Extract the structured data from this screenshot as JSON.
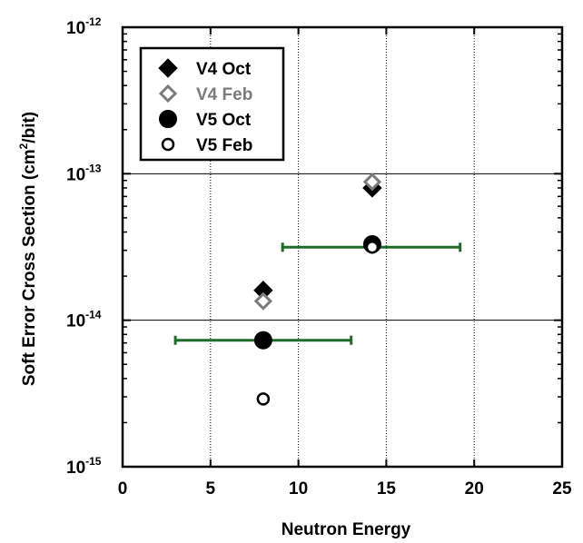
{
  "chart_data": {
    "type": "scatter",
    "xlabel": "Neutron Energy",
    "ylabel": "Soft Error Cross Section (cm²/bit)",
    "ylabel_parts": {
      "prefix": "Soft Error Cross Section (cm",
      "sup": "2",
      "suffix": "/bit)"
    },
    "xlim": [
      0,
      25
    ],
    "ylim": [
      1e-15,
      1e-12
    ],
    "yscale": "log",
    "x_ticks": [
      "0",
      "5",
      "10",
      "15",
      "20",
      "25"
    ],
    "x_tick_values": [
      0,
      5,
      10,
      15,
      20,
      25
    ],
    "y_ticks": [
      {
        "value": 1e-15,
        "base": "10",
        "exp": "-15"
      },
      {
        "value": 1e-14,
        "base": "10",
        "exp": "-14"
      },
      {
        "value": 1e-13,
        "base": "10",
        "exp": "-13"
      },
      {
        "value": 1e-12,
        "base": "10",
        "exp": "-12"
      }
    ],
    "vertical_gridlines_x": [
      5,
      10,
      15,
      20
    ],
    "horizontal_gridlines_y": [
      1e-14,
      1e-13
    ],
    "legend_position": "top-left",
    "series": [
      {
        "name": "V4 Oct",
        "marker": "diamond-filled",
        "color": "#000000",
        "points": [
          [
            8,
            1.6e-14
          ],
          [
            14.2,
            8e-14
          ]
        ]
      },
      {
        "name": "V4 Feb",
        "marker": "diamond-open",
        "color": "#7a7a7a",
        "points": [
          [
            8,
            1.35e-14
          ],
          [
            14.2,
            8.8e-14
          ]
        ]
      },
      {
        "name": "V5 Oct",
        "marker": "circle-filled",
        "color": "#000000",
        "points": [
          [
            8,
            7.3e-15
          ],
          [
            14.2,
            3.3e-14
          ]
        ]
      },
      {
        "name": "V5 Feb",
        "marker": "circle-open",
        "color": "#000000",
        "points": [
          [
            8,
            2.9e-15
          ],
          [
            14.2,
            3.15e-14
          ]
        ]
      }
    ],
    "x_error_bars": [
      {
        "x_min": 3,
        "x_max": 13,
        "y": 7.3e-15,
        "color": "#1f6b2a"
      },
      {
        "x_min": 9.1,
        "x_max": 19.2,
        "y": 3.15e-14,
        "color": "#1f6b2a"
      }
    ]
  }
}
